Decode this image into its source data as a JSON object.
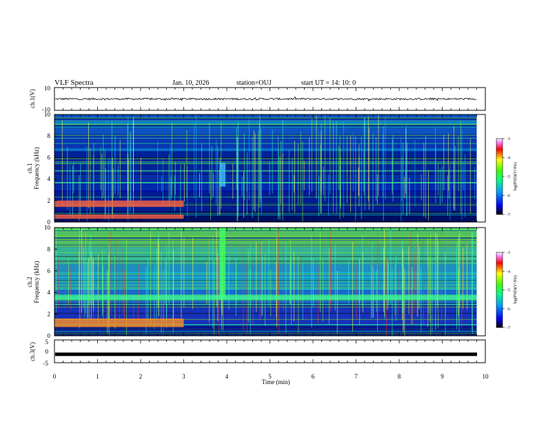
{
  "header": {
    "title": "VLF Spectra",
    "date": "Jan. 10, 2026",
    "station": "station=OUJ",
    "start": "start  UT  =   14: 10: 0"
  },
  "chart_data": [
    {
      "type": "line",
      "name": "ch1-waveform",
      "ylabel": "ch.1(V)",
      "yticks": [
        "10",
        "-10"
      ],
      "ylim": [
        -10,
        10
      ],
      "xlim": [
        0,
        10
      ],
      "baseline": 0
    },
    {
      "type": "heatmap",
      "name": "ch1-spectrogram",
      "ylabel_channel": "ch.1",
      "ylabel": "Frequency (kHz)",
      "yticks": [
        "0",
        "2",
        "4",
        "6",
        "8",
        "10"
      ],
      "ylim": [
        0,
        10
      ],
      "xlim": [
        0,
        9.8
      ],
      "colorbar": {
        "label": "log(PSD)(V²/Hz)",
        "ticks": [
          "-3",
          "-4",
          "-5",
          "-6",
          "-7"
        ],
        "range": [
          -7,
          -3
        ]
      },
      "features": [
        {
          "desc": "low-frequency emission band",
          "t": [
            0,
            3
          ],
          "f": [
            1.4,
            2.0
          ]
        },
        {
          "desc": "low-frequency emission band",
          "t": [
            0,
            3
          ],
          "f": [
            0.3,
            0.7
          ]
        },
        {
          "desc": "burst",
          "t": [
            3.83,
            3.97
          ],
          "f": [
            3.3,
            5.5
          ]
        },
        {
          "desc": "narrowband line",
          "t": [
            0,
            9.8
          ],
          "f": [
            3.6,
            3.7
          ]
        }
      ]
    },
    {
      "type": "heatmap",
      "name": "ch2-spectrogram",
      "ylabel_channel": "ch.2",
      "ylabel": "Frequency (kHz)",
      "yticks": [
        "0",
        "2",
        "4",
        "6",
        "8",
        "10"
      ],
      "ylim": [
        0,
        10
      ],
      "xlim": [
        0,
        9.8
      ],
      "colorbar": {
        "label": "log(PSD)(V²/Hz)",
        "ticks": [
          "-3",
          "-4",
          "-5",
          "-6",
          "-7"
        ],
        "range": [
          -7,
          -3
        ]
      },
      "features": [
        {
          "desc": "low-frequency emission band",
          "t": [
            0,
            3
          ],
          "f": [
            0.8,
            1.6
          ]
        },
        {
          "desc": "burst",
          "t": [
            3.83,
            3.97
          ],
          "f": [
            3.4,
            10
          ]
        },
        {
          "desc": "narrowband line",
          "t": [
            0,
            9.8
          ],
          "f": [
            3.3,
            3.8
          ]
        }
      ]
    },
    {
      "type": "line",
      "name": "ch3-waveform",
      "ylabel": "ch.3(V)",
      "yticks": [
        "5",
        "0",
        "-5"
      ],
      "ylim": [
        -5,
        5
      ],
      "xlim": [
        0,
        10
      ],
      "baseline": -1.3
    }
  ],
  "xaxis": {
    "label": "Time (min)",
    "ticks": [
      "0",
      "1",
      "2",
      "3",
      "4",
      "5",
      "6",
      "7",
      "8",
      "9",
      "10"
    ],
    "range": [
      0,
      10
    ]
  },
  "colors": {
    "scale": [
      "#000080",
      "#0000ff",
      "#00ffff",
      "#00ff00",
      "#ffff00",
      "#ff0000",
      "#ff00ff"
    ],
    "background": "#ffffff",
    "trace": "#000000"
  }
}
